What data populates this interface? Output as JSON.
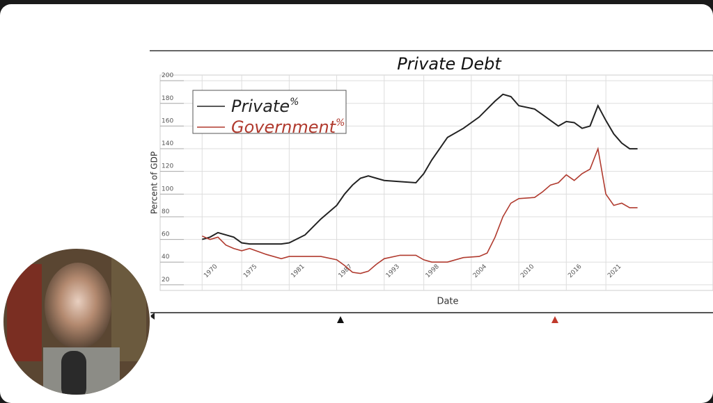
{
  "chart_data": {
    "type": "line",
    "title": "Private Debt",
    "x_label": "Date",
    "y_label": "Percent of GDP",
    "x": [
      1970,
      1971,
      1972,
      1973,
      1974,
      1975,
      1976,
      1978,
      1980,
      1981,
      1983,
      1985,
      1987,
      1988,
      1989,
      1990,
      1991,
      1992,
      1993,
      1995,
      1997,
      1998,
      1999,
      2001,
      2003,
      2005,
      2006,
      2007,
      2008,
      2009,
      2010,
      2012,
      2013,
      2014,
      2015,
      2016,
      2017,
      2018,
      2019,
      2020,
      2021,
      2022,
      2023,
      2024,
      2025
    ],
    "series": [
      {
        "name": "Private",
        "name_suffix": "%",
        "color": "#222222",
        "values": [
          60,
          62,
          66,
          64,
          62,
          57,
          56,
          56,
          56,
          57,
          64,
          78,
          90,
          100,
          108,
          114,
          116,
          114,
          112,
          111,
          110,
          118,
          130,
          150,
          158,
          168,
          175,
          182,
          188,
          186,
          178,
          175,
          170,
          165,
          160,
          164,
          163,
          158,
          160,
          178,
          165,
          153,
          145,
          140,
          140
        ]
      },
      {
        "name": "Government",
        "name_suffix": "%",
        "color": "#b03a2e",
        "values": [
          63,
          60,
          62,
          55,
          52,
          50,
          52,
          47,
          43,
          45,
          45,
          45,
          42,
          37,
          31,
          30,
          32,
          38,
          43,
          46,
          46,
          42,
          40,
          40,
          44,
          45,
          48,
          62,
          80,
          92,
          96,
          97,
          102,
          108,
          110,
          117,
          112,
          118,
          122,
          140,
          100,
          90,
          92,
          88,
          88
        ]
      }
    ],
    "xlim": [
      1964.7,
      2033.3
    ],
    "xticks": [
      1970,
      1975,
      1981,
      1987,
      1993,
      1998,
      2004,
      2010,
      2016,
      2021
    ],
    "ylim": [
      15,
      205
    ],
    "yticks": [
      20,
      40,
      60,
      80,
      100,
      120,
      140,
      160,
      180,
      200
    ],
    "grid": true,
    "legend": "upper left"
  }
}
